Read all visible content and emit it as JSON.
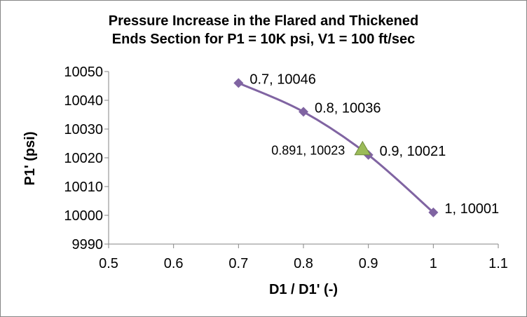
{
  "chart_data": {
    "type": "scatter",
    "title_lines": [
      "Pressure Increase in the Flared and Thickened",
      "Ends Section for P1 = 10K psi, V1 = 100 ft/sec"
    ],
    "xlabel": "D1 / D1' (-)",
    "ylabel": "P1' (psi)",
    "xlim": [
      0.5,
      1.1
    ],
    "ylim": [
      9990,
      10050
    ],
    "x_ticks": [
      0.5,
      0.6,
      0.7,
      0.8,
      0.9,
      1,
      1.1
    ],
    "x_tick_labels": [
      "0.5",
      "0.6",
      "0.7",
      "0.8",
      "0.9",
      "1",
      "1.1"
    ],
    "y_ticks": [
      9990,
      10000,
      10010,
      10020,
      10030,
      10040,
      10050
    ],
    "y_tick_labels": [
      "9990",
      "10000",
      "10010",
      "10020",
      "10030",
      "10040",
      "10050"
    ],
    "grid": false,
    "legend": "none",
    "series": [
      {
        "name": "P1'",
        "color": "#8064a2",
        "marker": "diamond",
        "line": "smooth",
        "points": [
          {
            "x": 0.7,
            "y": 10046,
            "label": "0.7, 10046"
          },
          {
            "x": 0.8,
            "y": 10036,
            "label": "0.8, 10036"
          },
          {
            "x": 0.9,
            "y": 10021,
            "label": "0.9, 10021"
          },
          {
            "x": 1,
            "y": 10001,
            "label": "1, 10001"
          }
        ]
      },
      {
        "name": "Selected",
        "color": "#9bbb59",
        "marker": "triangle",
        "points": [
          {
            "x": 0.891,
            "y": 10023,
            "label": "0.891, 10023"
          }
        ]
      }
    ]
  }
}
